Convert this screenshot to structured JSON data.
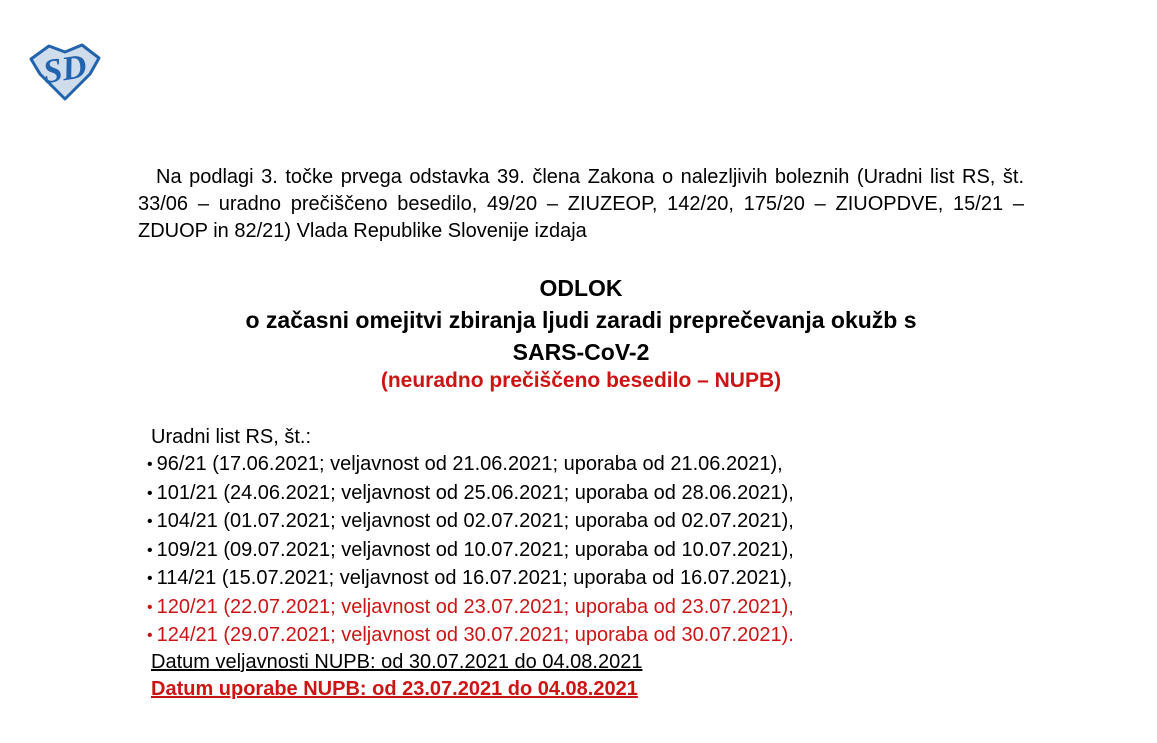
{
  "colors": {
    "red": "#cc1414",
    "black": "#000000",
    "logo_outline": "#2263ae",
    "logo_fill": "#cfdcec",
    "page_background": "#ffffff"
  },
  "logo": {
    "letters": "SD"
  },
  "intro_paragraph": "Na podlagi 3. točke prvega odstavka 39. člena Zakona o nalezljivih boleznih (Uradni list RS, št. 33/06 – uradno prečiščeno besedilo, 49/20 – ZIUZEOP, 142/20, 175/20 – ZIUOPDVE, 15/21 – ZDUOP in 82/21) Vlada Republike Slovenije izdaja",
  "title": {
    "line1": "ODLOK",
    "line2": "o začasni omejitvi zbiranja ljudi zaradi preprečevanja okužb s",
    "line3": "SARS-CoV-2",
    "subtitle": "(neuradno prečiščeno besedilo – NUPB)"
  },
  "gazette_list": {
    "heading": "Uradni list RS, št.:",
    "items": [
      {
        "text": "96/21 (17.06.2021; veljavnost od 21.06.2021; uporaba od 21.06.2021),",
        "red": false
      },
      {
        "text": "101/21 (24.06.2021; veljavnost od 25.06.2021; uporaba od 28.06.2021),",
        "red": false
      },
      {
        "text": "104/21 (01.07.2021; veljavnost od 02.07.2021; uporaba od 02.07.2021),",
        "red": false
      },
      {
        "text": "109/21 (09.07.2021; veljavnost od 10.07.2021; uporaba od 10.07.2021),",
        "red": false
      },
      {
        "text": "114/21 (15.07.2021; veljavnost od 16.07.2021; uporaba od 16.07.2021),",
        "red": false
      },
      {
        "text": "120/21 (22.07.2021; veljavnost od 23.07.2021; uporaba od 23.07.2021),",
        "red": true
      },
      {
        "text": "124/21 (29.07.2021; veljavnost od 30.07.2021; uporaba od 30.07.2021).",
        "red": true
      }
    ]
  },
  "validity": {
    "line1": "Datum veljavnosti NUPB: od 30.07.2021 do 04.08.2021",
    "line2": "Datum uporabe NUPB: od 23.07.2021 do 04.08.2021"
  }
}
